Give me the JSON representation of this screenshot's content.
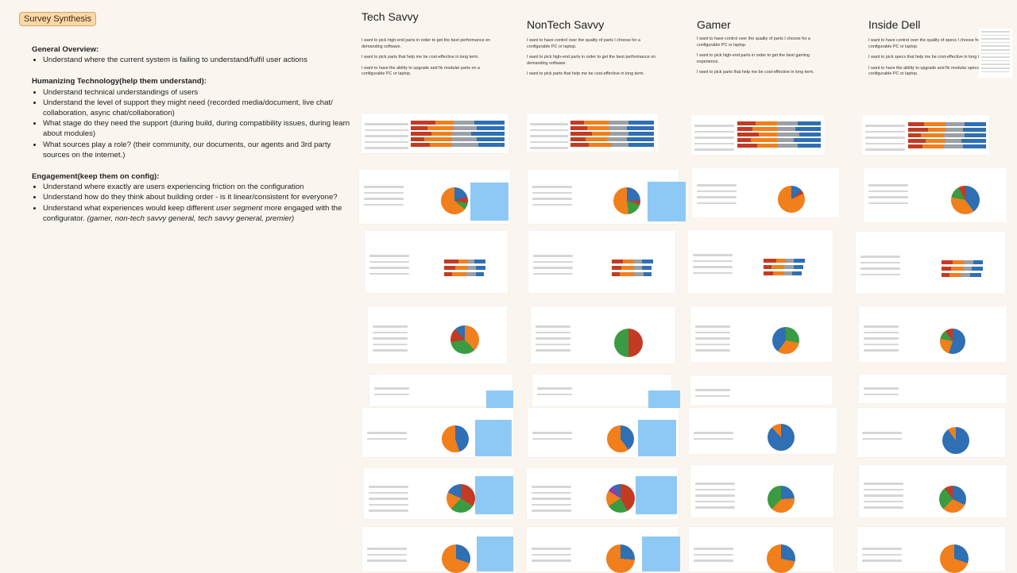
{
  "badge": "Survey Synthesis",
  "notes": {
    "general_title": "General Overview:",
    "general_items": [
      "Understand where the current system is failing to understand/fulfil user actions"
    ],
    "human_title": "Humanizing Technology(help them understand):",
    "human_items": [
      "Understand technical understandings of users",
      "Understand the level of support they might need (recorded media/document, live chat/ collaboration, async chat/collaboration)",
      "What stage do they need the support (during build, during compatibility issues, during learn about modules)",
      "What sources play a role? (their community, our documents, our agents and 3rd party sources on the internet.)"
    ],
    "engage_title": "Engagement(keep them on config):",
    "engage_items": [
      "Understand where exactly are users experiencing friction on the configuration",
      "Understand how do they think about building order - is it linear/consistent for everyone?"
    ],
    "engage_last_a": "Understand what experiences would keep different ",
    "engage_last_em": "user segment",
    "engage_last_b": " more engaged with the configurator. ",
    "engage_last_c": "(gamer, non-tech savvy general, tech savvy general, premier)"
  },
  "columns": [
    {
      "title": "Tech Savvy",
      "statements": [
        "I want to pick high-end parts in order to get the best performance on demanding software.",
        "I want to pick parts that help me be cost-effective in long term.",
        "I want to have the ability to upgrade and fix modular parts on a configurable PC or laptop."
      ]
    },
    {
      "title": "NonTech Savvy",
      "statements": [
        "I want to have control over the quality of parts I choose for a configurable PC or laptop.",
        "I want to pick high-end parts in order to get the best performance on demanding software.",
        "I want to pick parts that help me be cost-effective in long term."
      ]
    },
    {
      "title": "Gamer",
      "statements": [
        "I want to have control over the quality of parts I choose for a configurable PC or laptop.",
        "I want to pick high-end parts in order to get the best gaming experience.",
        "I want to pick parts that help me be cost-effective in long term."
      ]
    },
    {
      "title": "Inside Dell",
      "statements": [
        "I want to have control over the quality of specs I choose for a configurable PC or laptop.",
        "I want to pick specs that help me be cost-effective in long term.",
        "I want to have the ability to upgrade and fix modular specs on a configurable PC or laptop."
      ]
    }
  ],
  "colors": {
    "blue": "#2f6fb3",
    "orange": "#f07f1c",
    "red": "#c23b22",
    "green": "#3a9b43",
    "gray": "#9aa0a6",
    "light_blue": "#8ec9f5"
  }
}
